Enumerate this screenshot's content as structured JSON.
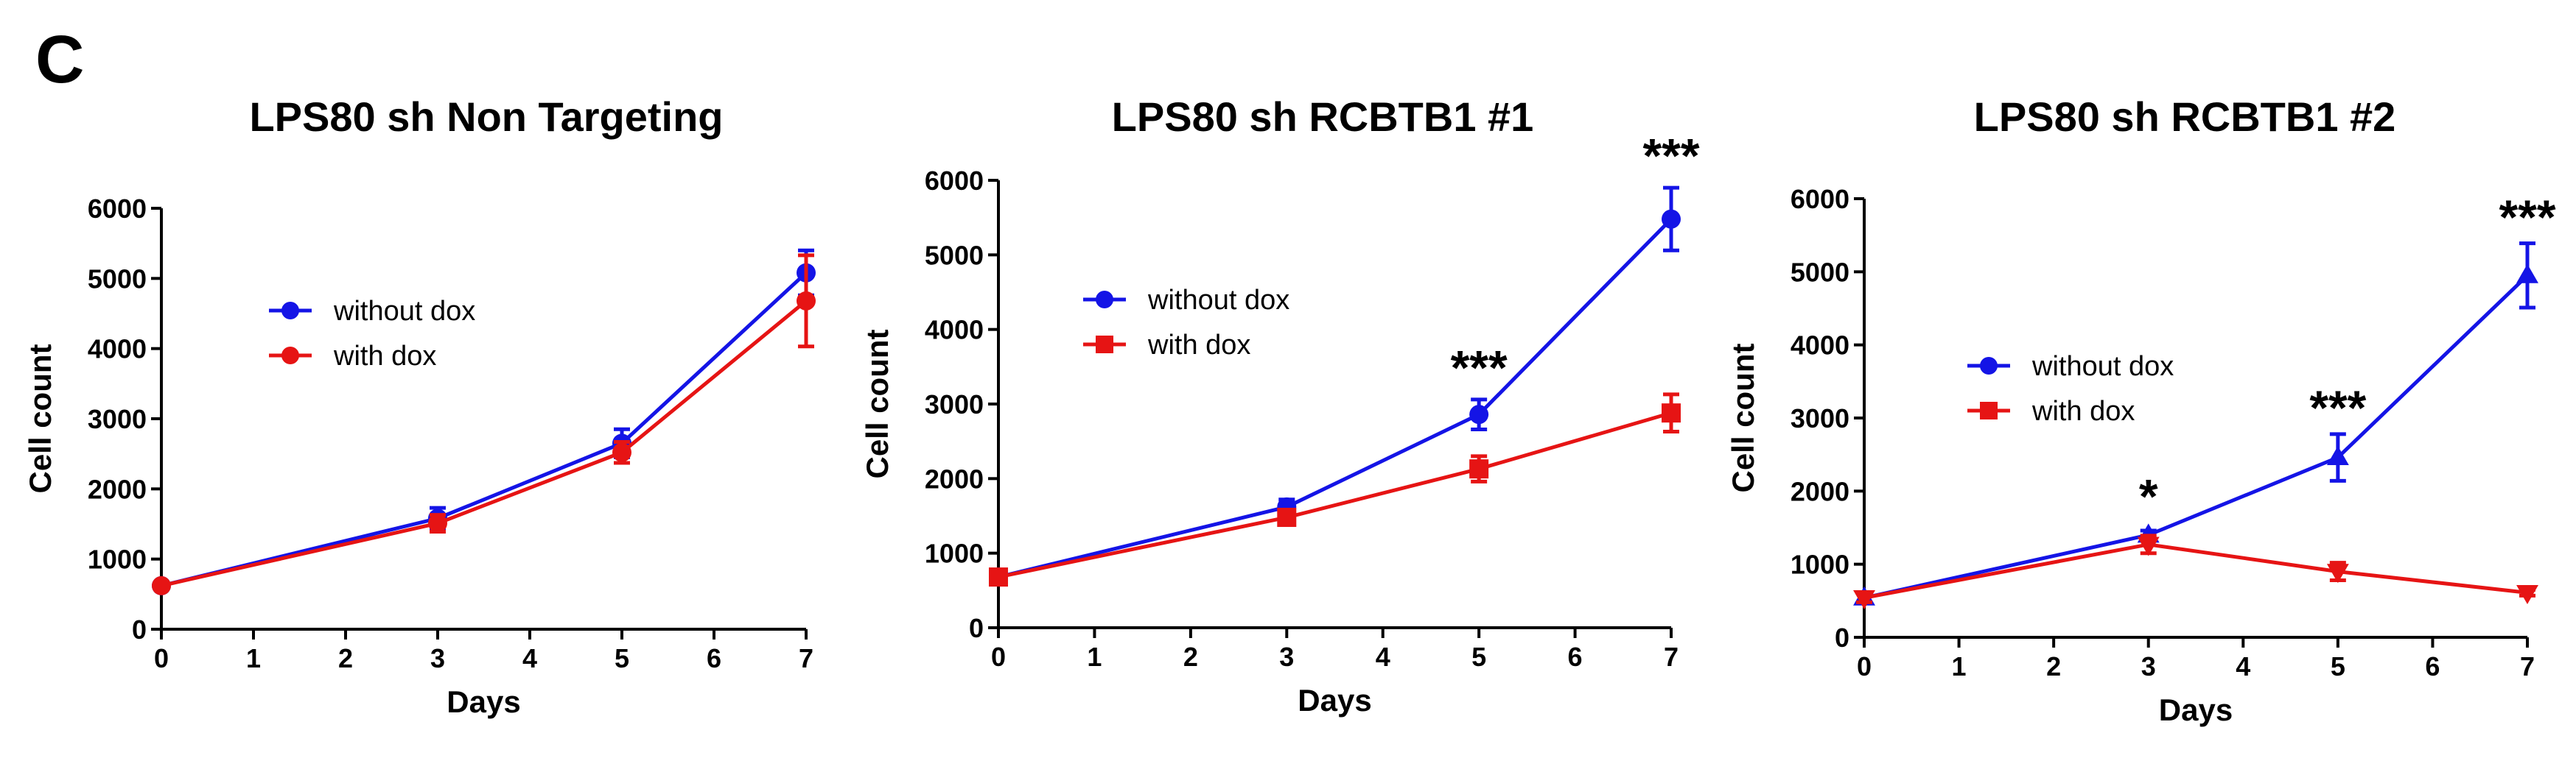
{
  "figure": {
    "panel_letter": "C"
  },
  "chart_data": [
    {
      "type": "line",
      "title": "LPS80 sh Non Targeting",
      "xlabel": "Days",
      "ylabel": "Cell count",
      "xlim": [
        0,
        7
      ],
      "ylim": [
        0,
        6000
      ],
      "xticks": [
        0,
        1,
        2,
        3,
        4,
        5,
        6,
        7
      ],
      "yticks": [
        0,
        1000,
        2000,
        3000,
        4000,
        5000,
        6000
      ],
      "grid": false,
      "legend_position": "upper-left",
      "series": [
        {
          "name": "without dox",
          "color": "#1414e6",
          "marker": "circle",
          "x": [
            0,
            3,
            5,
            7
          ],
          "y": [
            620,
            1580,
            2650,
            5080
          ],
          "err": [
            40,
            150,
            200,
            320
          ]
        },
        {
          "name": "with dox",
          "color": "#e61414",
          "marker": "circle",
          "x": [
            0,
            3,
            5,
            7
          ],
          "y": [
            620,
            1510,
            2520,
            4680
          ],
          "err": [
            40,
            120,
            150,
            650
          ]
        }
      ],
      "annotations": []
    },
    {
      "type": "line",
      "title": "LPS80 sh RCBTB1 #1",
      "xlabel": "Days",
      "ylabel": "Cell count",
      "xlim": [
        0,
        7
      ],
      "ylim": [
        0,
        6000
      ],
      "xticks": [
        0,
        1,
        2,
        3,
        4,
        5,
        6,
        7
      ],
      "yticks": [
        0,
        1000,
        2000,
        3000,
        4000,
        5000,
        6000
      ],
      "grid": false,
      "legend_position": "upper-left",
      "series": [
        {
          "name": "without dox",
          "color": "#1414e6",
          "marker": "circle",
          "x": [
            0,
            3,
            5,
            7
          ],
          "y": [
            680,
            1620,
            2860,
            5480
          ],
          "err": [
            60,
            100,
            200,
            420
          ]
        },
        {
          "name": "with dox",
          "color": "#e61414",
          "marker": "square",
          "x": [
            0,
            3,
            5,
            7
          ],
          "y": [
            680,
            1480,
            2130,
            2880
          ],
          "err": [
            60,
            80,
            170,
            250
          ]
        }
      ],
      "annotations": [
        {
          "x": 5,
          "y": 3560,
          "text": "***"
        },
        {
          "x": 7,
          "y": 6400,
          "text": "***"
        }
      ]
    },
    {
      "type": "line",
      "title": "LPS80 sh RCBTB1 #2",
      "xlabel": "Days",
      "ylabel": "Cell count",
      "xlim": [
        0,
        7
      ],
      "ylim": [
        0,
        6000
      ],
      "xticks": [
        0,
        1,
        2,
        3,
        4,
        5,
        6,
        7
      ],
      "yticks": [
        0,
        1000,
        2000,
        3000,
        4000,
        5000,
        6000
      ],
      "grid": false,
      "legend_position": "center-left",
      "series": [
        {
          "name": "without dox",
          "color": "#1414e6",
          "marker": "triangle-up",
          "x": [
            0,
            3,
            5,
            7
          ],
          "y": [
            540,
            1400,
            2460,
            4950
          ],
          "err": [
            60,
            60,
            320,
            440
          ]
        },
        {
          "name": "with dox",
          "color": "#e61414",
          "marker": "triangle-down",
          "x": [
            0,
            3,
            5,
            7
          ],
          "y": [
            540,
            1270,
            900,
            610
          ],
          "err": [
            60,
            120,
            120,
            40
          ]
        }
      ],
      "legend_markers": [
        "circle",
        "square"
      ],
      "annotations": [
        {
          "x": 3,
          "y": 2000,
          "text": "*"
        },
        {
          "x": 5,
          "y": 3210,
          "text": "***"
        },
        {
          "x": 7,
          "y": 5820,
          "text": "***"
        }
      ]
    }
  ]
}
